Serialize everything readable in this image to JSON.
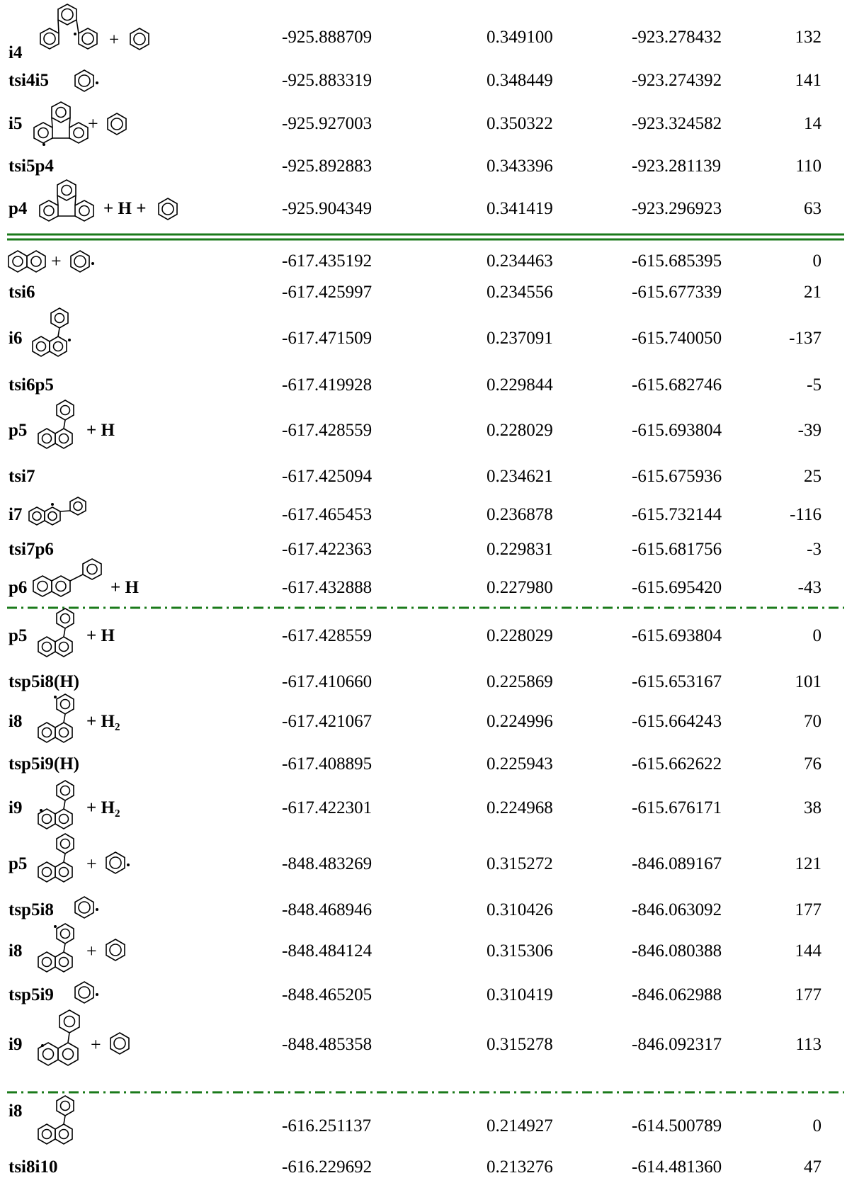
{
  "rows": [
    {
      "label": "i4",
      "c1": "-925.888709",
      "c2": "0.349100",
      "c3": "-923.278432",
      "c4": "132",
      "suffix": "+"
    },
    {
      "label": "tsi4i5",
      "c1": "-925.883319",
      "c2": "0.348449",
      "c3": "-923.274392",
      "c4": "141"
    },
    {
      "label": "i5",
      "c1": "-925.927003",
      "c2": "0.350322",
      "c3": "-923.324582",
      "c4": "14",
      "suffix": "+"
    },
    {
      "label": "tsi5p4",
      "c1": "-925.892883",
      "c2": "0.343396",
      "c3": "-923.281139",
      "c4": "110"
    },
    {
      "label": "p4",
      "c1": "-925.904349",
      "c2": "0.341419",
      "c3": "-923.296923",
      "c4": "63",
      "suffix": "+ H +"
    },
    {
      "label": "",
      "c1": "-617.435192",
      "c2": "0.234463",
      "c3": "-615.685395",
      "c4": "0",
      "suffix": "+"
    },
    {
      "label": "tsi6",
      "c1": "-617.425997",
      "c2": "0.234556",
      "c3": "-615.677339",
      "c4": "21"
    },
    {
      "label": "i6",
      "c1": "-617.471509",
      "c2": "0.237091",
      "c3": "-615.740050",
      "c4": "-137"
    },
    {
      "label": "tsi6p5",
      "c1": "-617.419928",
      "c2": "0.229844",
      "c3": "-615.682746",
      "c4": "-5"
    },
    {
      "label": "p5",
      "c1": "-617.428559",
      "c2": "0.228029",
      "c3": "-615.693804",
      "c4": "-39",
      "suffix": "+ H"
    },
    {
      "label": "tsi7",
      "c1": "-617.425094",
      "c2": "0.234621",
      "c3": "-615.675936",
      "c4": "25"
    },
    {
      "label": "i7",
      "c1": "-617.465453",
      "c2": "0.236878",
      "c3": "-615.732144",
      "c4": "-116"
    },
    {
      "label": "tsi7p6",
      "c1": "-617.422363",
      "c2": "0.229831",
      "c3": "-615.681756",
      "c4": "-3"
    },
    {
      "label": "p6",
      "c1": "-617.432888",
      "c2": "0.227980",
      "c3": "-615.695420",
      "c4": "-43",
      "suffix": "+ H"
    },
    {
      "label": "p5",
      "c1": "-617.428559",
      "c2": "0.228029",
      "c3": "-615.693804",
      "c4": "0",
      "suffix": "+ H"
    },
    {
      "label": "tsp5i8(H)",
      "c1": "-617.410660",
      "c2": "0.225869",
      "c3": "-615.653167",
      "c4": "101"
    },
    {
      "label": "i8",
      "c1": "-617.421067",
      "c2": "0.224996",
      "c3": "-615.664243",
      "c4": "70",
      "suffix": "+ H₂"
    },
    {
      "label": "tsp5i9(H)",
      "c1": "-617.408895",
      "c2": "0.225943",
      "c3": "-615.662622",
      "c4": "76"
    },
    {
      "label": "i9",
      "c1": "-617.422301",
      "c2": "0.224968",
      "c3": "-615.676171",
      "c4": "38",
      "suffix": "+ H₂"
    },
    {
      "label": "p5",
      "c1": "-848.483269",
      "c2": "0.315272",
      "c3": "-846.089167",
      "c4": "121",
      "suffix": "+"
    },
    {
      "label": "tsp5i8",
      "c1": "-848.468946",
      "c2": "0.310426",
      "c3": "-846.063092",
      "c4": "177"
    },
    {
      "label": "i8",
      "c1": "-848.484124",
      "c2": "0.315306",
      "c3": "-846.080388",
      "c4": "144",
      "suffix": "+"
    },
    {
      "label": "tsp5i9",
      "c1": "-848.465205",
      "c2": "0.310419",
      "c3": "-846.062988",
      "c4": "177"
    },
    {
      "label": "i9",
      "c1": "-848.485358",
      "c2": "0.315278",
      "c3": "-846.092317",
      "c4": "113",
      "suffix": "+"
    },
    {
      "label": "i8",
      "c1": "-616.251137",
      "c2": "0.214927",
      "c3": "-614.500789",
      "c4": "0"
    },
    {
      "label": "tsi8i10",
      "c1": "-616.229692",
      "c2": "0.213276",
      "c3": "-614.481360",
      "c4": "47"
    }
  ],
  "colors": {
    "solid_separator": "#1a7a1a",
    "dashed_separator": "#1a7a1a"
  }
}
